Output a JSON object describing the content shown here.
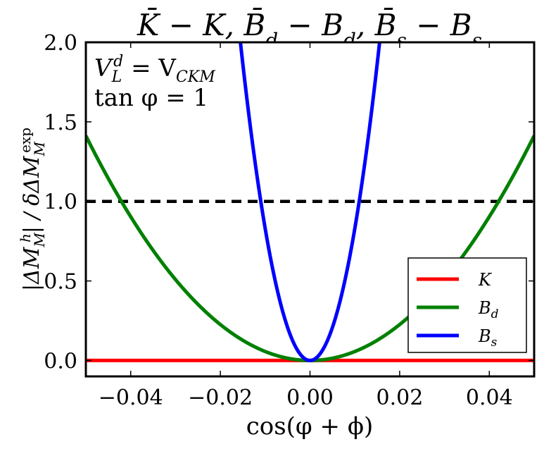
{
  "chart_data": {
    "type": "line",
    "title": "K̄ − K, B̄_d − B_d, B̄_s − B_s",
    "title_parts": [
      {
        "text": "K̄",
        "sub": ""
      },
      {
        "text": " − K, ",
        "sub": ""
      },
      {
        "text": "B̄",
        "sub": "d"
      },
      {
        "text": " − B",
        "sub": "d"
      },
      {
        "text": ", B̄",
        "sub": "s"
      },
      {
        "text": " − B",
        "sub": "s"
      }
    ],
    "xlabel": "cos(φ + ϕ)",
    "ylabel": "|ΔM_M^h| / δΔM_M^exp",
    "ylabel_parts": {
      "pre": "|ΔM",
      "sub1": "M",
      "sup1": "h",
      "mid": "| / δΔM",
      "sub2": "M",
      "sup2": "exp"
    },
    "xlim": [
      -0.05,
      0.05
    ],
    "ylim": [
      -0.1,
      2.0
    ],
    "xticks": [
      -0.04,
      -0.02,
      0.0,
      0.02,
      0.04
    ],
    "xtick_labels": [
      "−0.04",
      "−0.02",
      "0.00",
      "0.02",
      "0.04"
    ],
    "yticks": [
      0.0,
      0.5,
      1.0,
      1.5,
      2.0
    ],
    "ytick_labels": [
      "0.0",
      "0.5",
      "1.0",
      "1.5",
      "2.0"
    ],
    "grid": false,
    "annotations": [
      {
        "text": "V_L^d = V_CKM"
      },
      {
        "text": "tan φ = 1"
      }
    ],
    "annotation_text": {
      "line1_V": "V",
      "line1_sub": "L",
      "line1_sup": "d",
      "line1_eq": " = V",
      "line1_sub2": "CKM",
      "line2": "tan φ = 1"
    },
    "reference_line": {
      "y": 1.0,
      "style": "dashed",
      "color": "#000000"
    },
    "legend_position": "lower-right",
    "series": [
      {
        "name": "K",
        "name_base": "K",
        "name_sub": "",
        "color": "#ff0000",
        "model": "quadratic",
        "coefficient": 0.0
      },
      {
        "name": "B_d",
        "name_base": "B",
        "name_sub": "d",
        "color": "#008000",
        "model": "quadratic",
        "coefficient": 565
      },
      {
        "name": "B_s",
        "name_base": "B",
        "name_sub": "s",
        "color": "#0000ff",
        "model": "quadratic",
        "coefficient": 8300
      }
    ],
    "sample_points": {
      "x": [
        -0.05,
        -0.04,
        -0.03,
        -0.02,
        -0.015,
        -0.01,
        0.0,
        0.01,
        0.015,
        0.02,
        0.03,
        0.04,
        0.05
      ],
      "K": [
        0,
        0,
        0,
        0,
        0,
        0,
        0,
        0,
        0,
        0,
        0,
        0,
        0
      ],
      "B_d": [
        1.41,
        0.9,
        0.51,
        0.23,
        0.13,
        0.06,
        0.0,
        0.06,
        0.13,
        0.23,
        0.51,
        0.9,
        1.41
      ],
      "B_s": [
        null,
        null,
        null,
        null,
        1.87,
        0.83,
        0.0,
        0.83,
        1.87,
        null,
        null,
        null,
        null
      ]
    }
  }
}
